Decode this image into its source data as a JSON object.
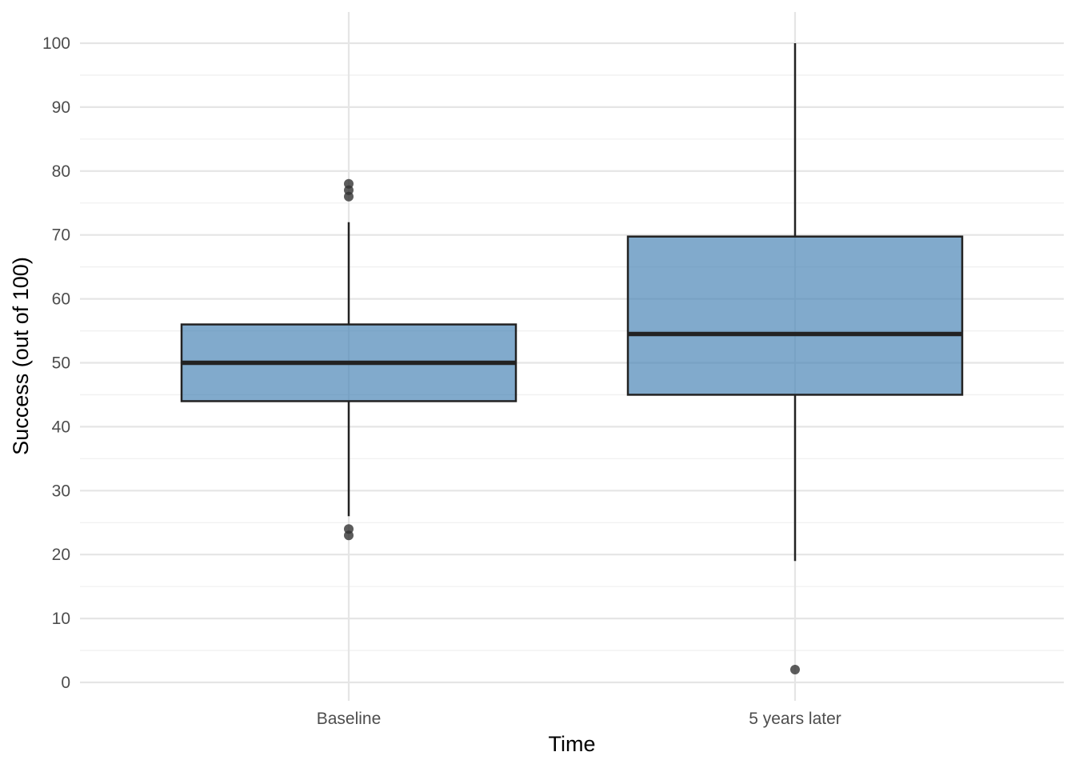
{
  "chart_data": {
    "type": "box",
    "xlabel": "Time",
    "ylabel": "Success (out of 100)",
    "categories": [
      "Baseline",
      "5 years later"
    ],
    "ylim": [
      -5,
      105
    ],
    "yticks": [
      0,
      10,
      20,
      30,
      40,
      50,
      60,
      70,
      80,
      90,
      100
    ],
    "grid": true,
    "legend": "none",
    "boxes": [
      {
        "category": "Baseline",
        "whisker_low": 26,
        "q1": 44,
        "median": 50,
        "q3": 56,
        "whisker_high": 72,
        "outliers": [
          23,
          24,
          76,
          77,
          78
        ]
      },
      {
        "category": "5 years later",
        "whisker_low": 19,
        "q1": 45,
        "median": 54.5,
        "q3": 69.75,
        "whisker_high": 100,
        "outliers": [
          2
        ]
      }
    ],
    "colors": {
      "box_fill": "#4682b4",
      "box_stroke": "#222222",
      "outlier": "#333333",
      "grid_major": "#e5e5e5",
      "grid_minor": "#f0f0f0"
    }
  }
}
